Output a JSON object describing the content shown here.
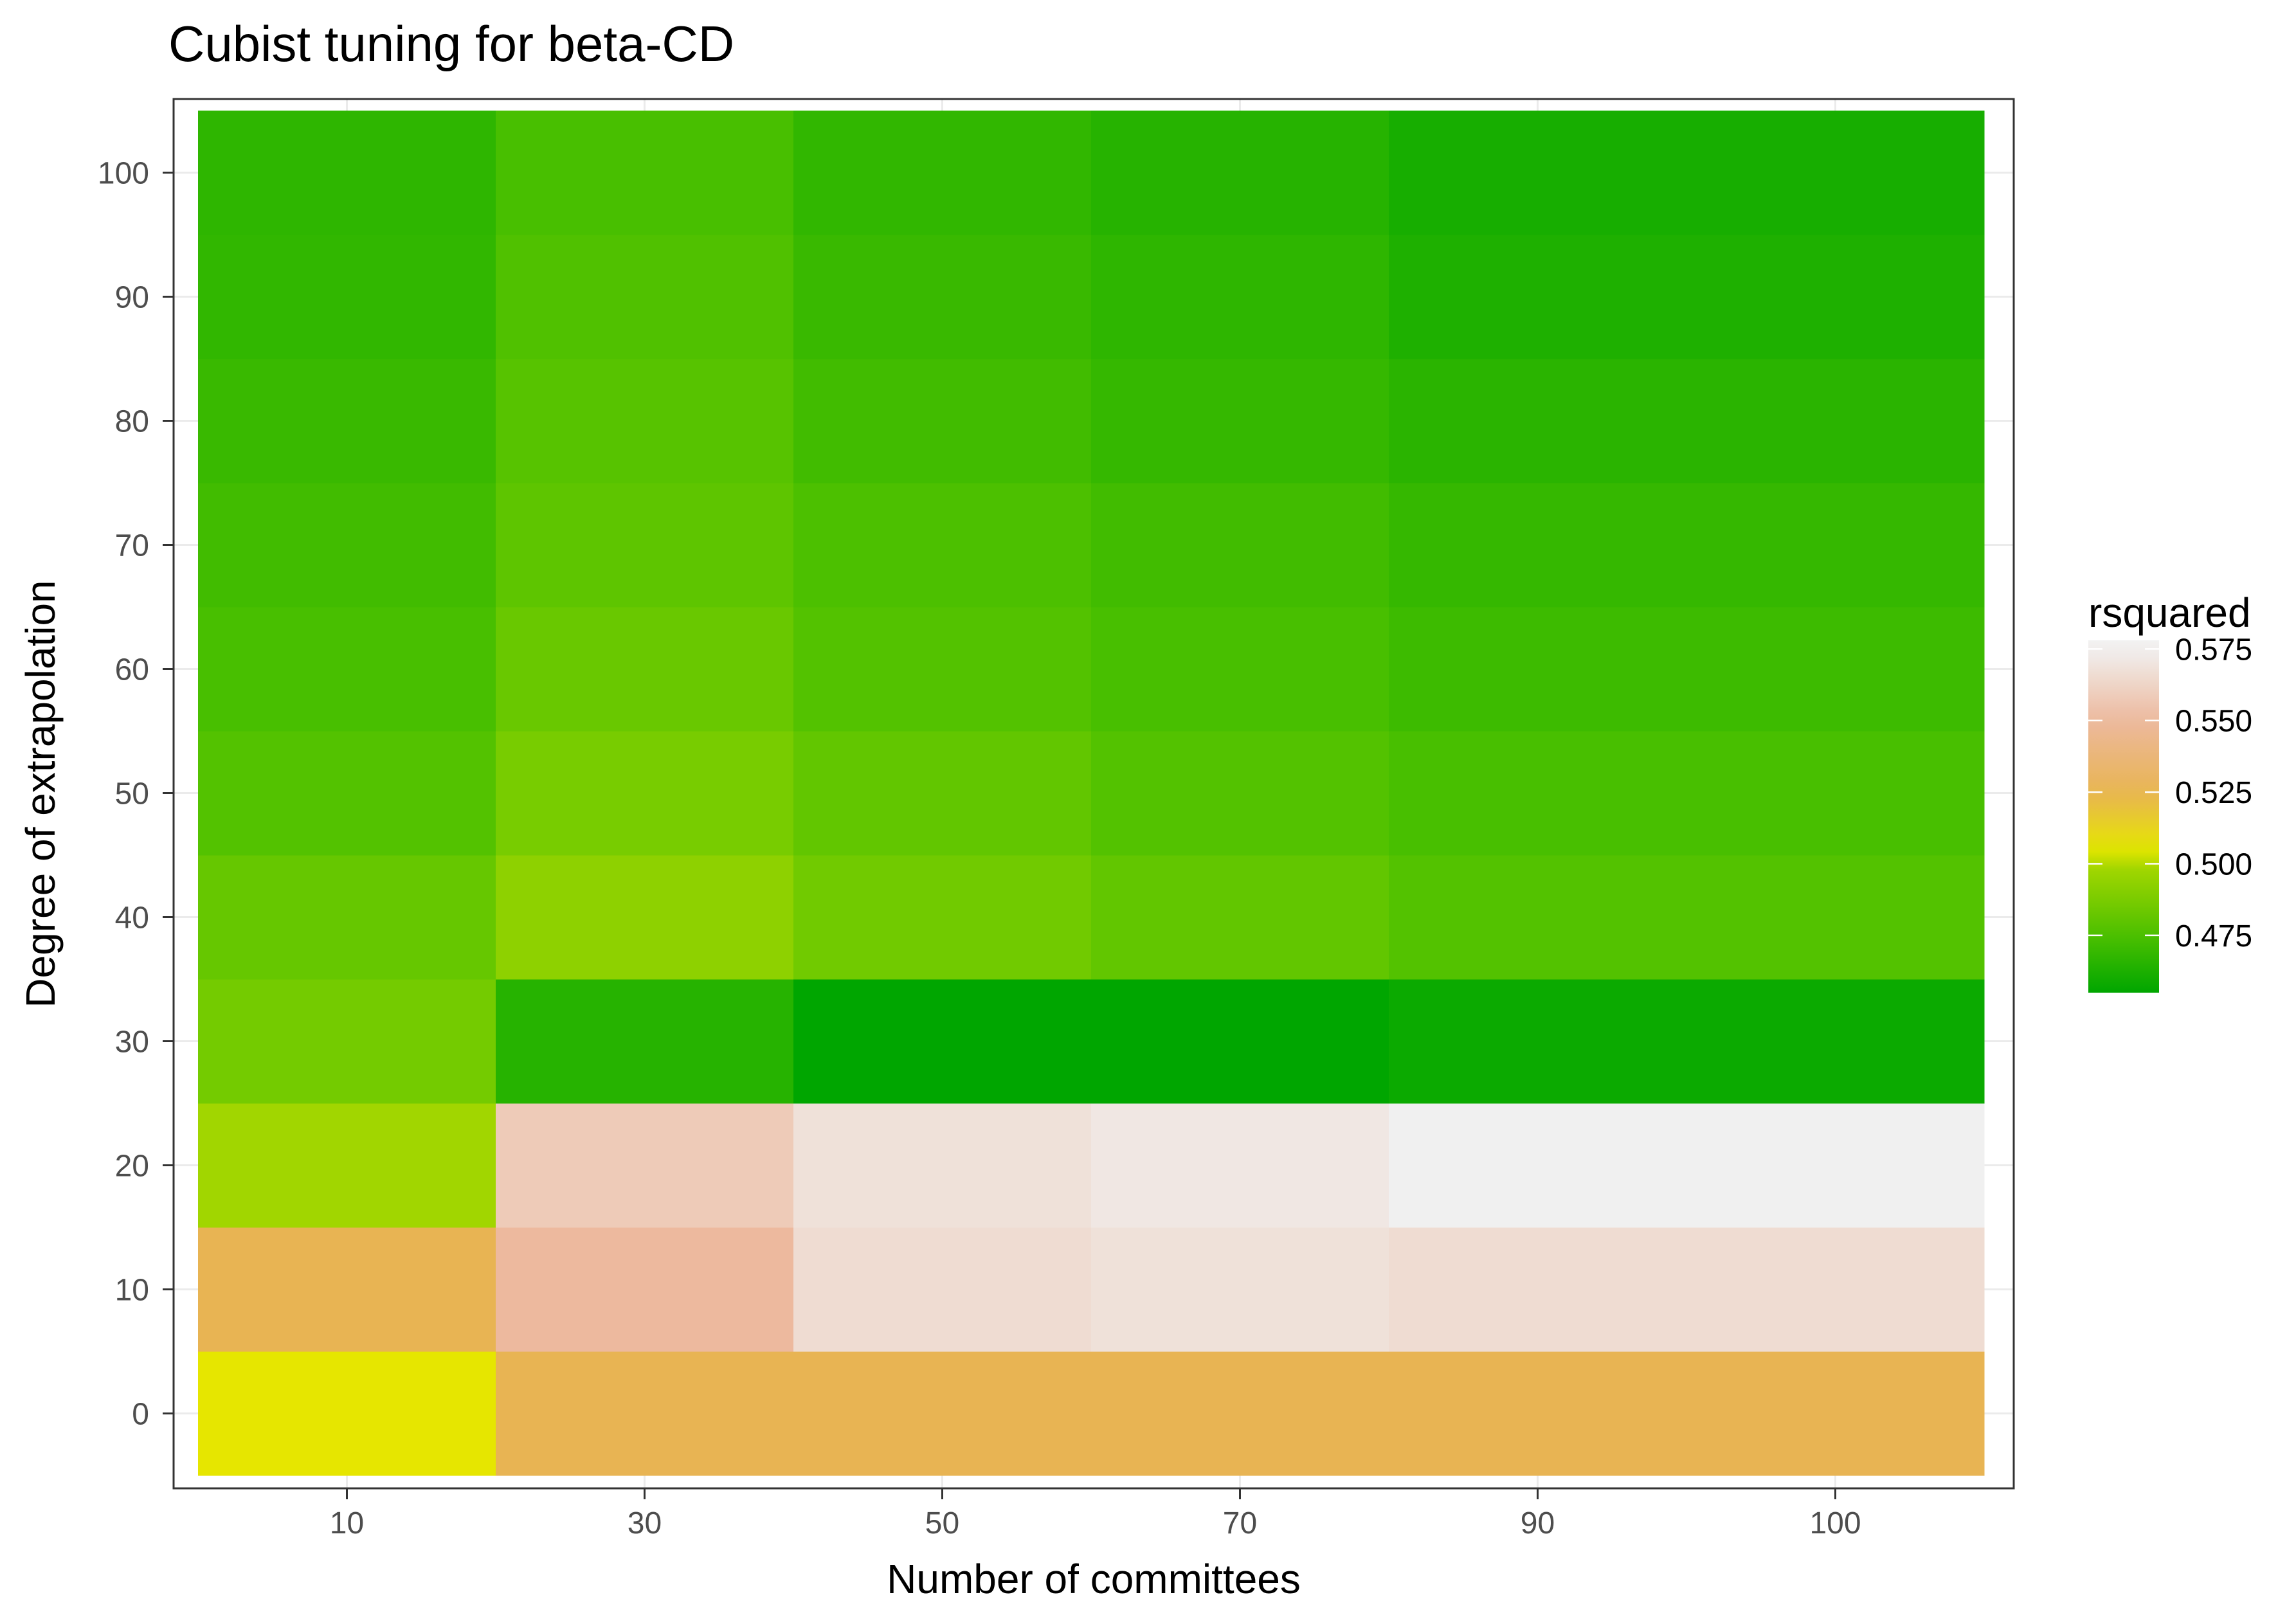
{
  "chart_data": {
    "type": "heatmap",
    "title": "Cubist tuning for beta-CD",
    "xlabel": "Number of committees",
    "ylabel": "Degree of extrapolation",
    "x": [
      "10",
      "30",
      "50",
      "70",
      "90",
      "100"
    ],
    "y": [
      0,
      10,
      20,
      30,
      40,
      50,
      60,
      70,
      80,
      90,
      100
    ],
    "x_ticks": [
      "10",
      "30",
      "50",
      "70",
      "90",
      "100"
    ],
    "y_ticks": [
      "0",
      "10",
      "20",
      "30",
      "40",
      "50",
      "60",
      "70",
      "80",
      "90",
      "100"
    ],
    "values": [
      [
        0.505,
        0.525,
        0.525,
        0.525,
        0.525,
        0.525
      ],
      [
        0.525,
        0.55,
        0.566,
        0.568,
        0.566,
        0.566
      ],
      [
        0.498,
        0.558,
        0.568,
        0.571,
        0.575,
        0.575
      ],
      [
        0.486,
        0.465,
        0.455,
        0.455,
        0.458,
        0.458
      ],
      [
        0.482,
        0.493,
        0.485,
        0.481,
        0.477,
        0.477
      ],
      [
        0.477,
        0.487,
        0.481,
        0.477,
        0.474,
        0.474
      ],
      [
        0.474,
        0.483,
        0.477,
        0.474,
        0.471,
        0.471
      ],
      [
        0.472,
        0.48,
        0.475,
        0.472,
        0.469,
        0.469
      ],
      [
        0.47,
        0.478,
        0.472,
        0.469,
        0.466,
        0.466
      ],
      [
        0.468,
        0.476,
        0.47,
        0.467,
        0.463,
        0.463
      ],
      [
        0.467,
        0.474,
        0.468,
        0.465,
        0.461,
        0.461
      ]
    ],
    "color_scale": {
      "domain": [
        0.455,
        0.475,
        0.5,
        0.505,
        0.525,
        0.55,
        0.575,
        0.578
      ],
      "colors": [
        "#00a600",
        "#4cc000",
        "#a8d800",
        "#e6e600",
        "#e8b453",
        "#edb99e",
        "#f0f0f0",
        "#f2f2f2"
      ]
    },
    "legend": {
      "title": "rsquared",
      "labels": [
        "0.575",
        "0.550",
        "0.525",
        "0.500",
        "0.475"
      ],
      "label_values": [
        0.575,
        0.55,
        0.525,
        0.5,
        0.475
      ],
      "range": [
        0.455,
        0.578
      ],
      "position": "right"
    },
    "grid": true
  }
}
